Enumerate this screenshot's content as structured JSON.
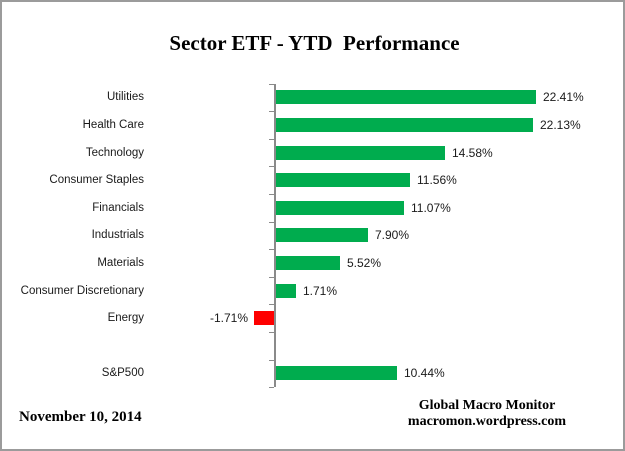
{
  "chart_data": {
    "type": "bar",
    "orientation": "horizontal",
    "title": "Sector ETF - YTD  Performance",
    "categories": [
      "Utilities",
      "Health Care",
      "Technology",
      "Consumer Staples",
      "Financials",
      "Industrials",
      "Materials",
      "Consumer Discretionary",
      "Energy",
      "",
      "S&P500"
    ],
    "values": [
      22.41,
      22.13,
      14.58,
      11.56,
      11.07,
      7.9,
      5.52,
      1.71,
      -1.71,
      null,
      10.44
    ],
    "data_labels": [
      "22.41%",
      "22.13%",
      "14.58%",
      "11.56%",
      "11.07%",
      "7.90%",
      "5.52%",
      "1.71%",
      "-1.71%",
      "",
      "10.44%"
    ],
    "xlabel": "",
    "ylabel": "",
    "grid": false,
    "legend": false,
    "value_axis_labels_visible": false
  },
  "colors": {
    "positive_bar": "#00ac4e",
    "negative_bar": "#fe0000",
    "axis": "#8a8a8a",
    "text": "#000000"
  },
  "footer": {
    "date": "November 10, 2014",
    "attribution": [
      "Global Macro Monitor",
      "macromon.wordpress.com"
    ]
  }
}
